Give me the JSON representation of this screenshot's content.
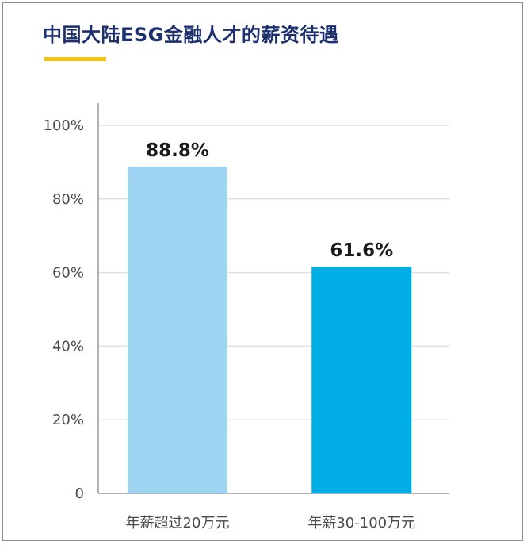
{
  "chart_data": {
    "type": "bar",
    "title": "中国大陆ESG金融人才的薪资待遇",
    "categories": [
      "年薪超过20万元",
      "年薪30-100万元"
    ],
    "values": [
      88.8,
      61.6
    ],
    "value_labels": [
      "88.8%",
      "61.6%"
    ],
    "bar_colors": [
      "#9dd4f2",
      "#00aee6"
    ],
    "y_ticks": [
      0,
      20,
      40,
      60,
      80,
      100
    ],
    "y_tick_labels": [
      "0",
      "20%",
      "40%",
      "60%",
      "80%",
      "100%"
    ],
    "ylim": [
      0,
      100
    ],
    "grid": true,
    "legend": "none"
  },
  "colors": {
    "title": "#1c2f6e",
    "accent": "#f4c20d",
    "grid": "#e1e1e1",
    "axis": "#9a9a9a"
  }
}
